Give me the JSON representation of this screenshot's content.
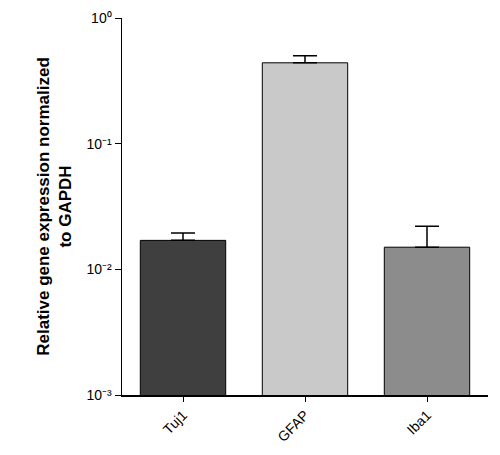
{
  "chart_data": {
    "type": "bar",
    "ylabel": [
      "Relative gene expression normalized",
      "to GAPDH"
    ],
    "categories": [
      "Tuj1",
      "GFAP",
      "Iba1"
    ],
    "values": [
      0.017,
      0.44,
      0.015
    ],
    "errors": [
      0.0025,
      0.06,
      0.007
    ],
    "colors": [
      "#3f3f3f",
      "#c9c9c9",
      "#8c8c8c"
    ],
    "log": "y",
    "ylim": [
      0.001,
      1
    ],
    "yticks": [
      {
        "value": 0.001,
        "label": "10⁻³"
      },
      {
        "value": 0.01,
        "label": "10⁻²"
      },
      {
        "value": 0.1,
        "label": "10⁻¹"
      },
      {
        "value": 1,
        "label": "10⁰"
      }
    ],
    "grid": false
  }
}
